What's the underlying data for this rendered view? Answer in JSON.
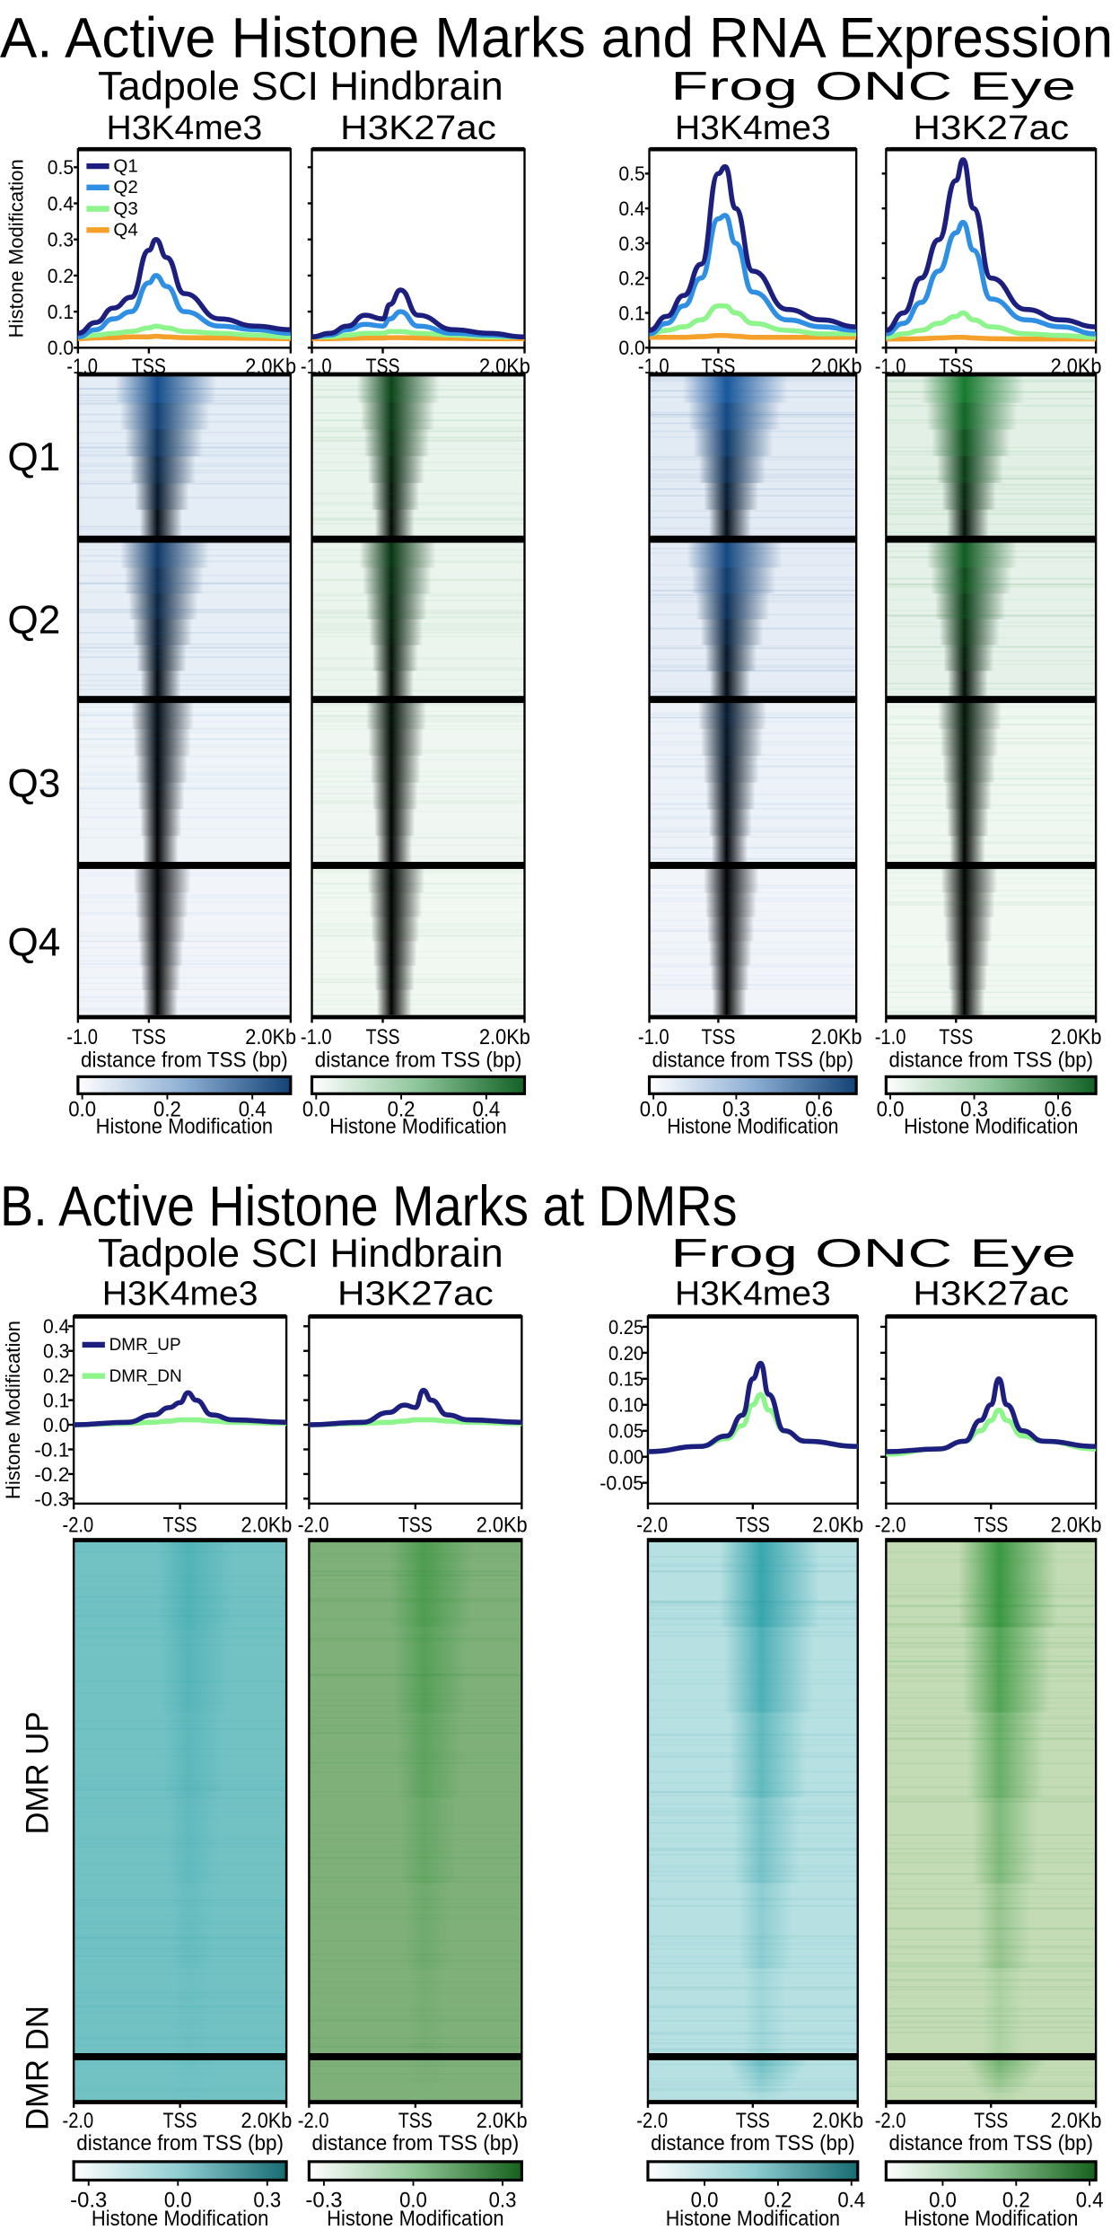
{
  "chart_data": [
    {
      "section": "A",
      "title": "A. Active Histone Marks and RNA Expression",
      "type": "line",
      "groups": [
        {
          "title": "Tadpole SCI Hindbrain",
          "panels": [
            {
              "mark": "H3K4me3",
              "heat_color": "#1b5ea8",
              "ylim": [
                0,
                0.55
              ],
              "yticks": [
                "0.0",
                "0.1",
                "0.2",
                "0.3",
                "0.4",
                "0.5"
              ],
              "cbar_ticks": [
                "0.0",
                "0.2",
                "0.4"
              ],
              "series": [
                {
                  "name": "Q1",
                  "values": [
                    0.04,
                    0.07,
                    0.11,
                    0.14,
                    0.27,
                    0.3,
                    0.25,
                    0.15,
                    0.08,
                    0.06,
                    0.05
                  ]
                },
                {
                  "name": "Q2",
                  "values": [
                    0.03,
                    0.05,
                    0.08,
                    0.1,
                    0.18,
                    0.2,
                    0.17,
                    0.1,
                    0.06,
                    0.05,
                    0.04
                  ]
                },
                {
                  "name": "Q3",
                  "values": [
                    0.03,
                    0.035,
                    0.04,
                    0.045,
                    0.055,
                    0.06,
                    0.055,
                    0.045,
                    0.04,
                    0.035,
                    0.03
                  ]
                },
                {
                  "name": "Q4",
                  "values": [
                    0.025,
                    0.027,
                    0.028,
                    0.03,
                    0.03,
                    0.032,
                    0.03,
                    0.028,
                    0.027,
                    0.026,
                    0.025
                  ]
                }
              ],
              "heat_intensity": [
                0.75,
                0.55,
                0.12,
                0.03
              ]
            },
            {
              "mark": "H3K27ac",
              "heat_color": "#1a8a35",
              "ylim": [
                0,
                0.55
              ],
              "yticks": [],
              "cbar_ticks": [
                "0.0",
                "0.2",
                "0.4"
              ],
              "series": [
                {
                  "name": "Q1",
                  "values": [
                    0.03,
                    0.04,
                    0.06,
                    0.09,
                    0.08,
                    0.12,
                    0.16,
                    0.09,
                    0.05,
                    0.04,
                    0.03
                  ]
                },
                {
                  "name": "Q2",
                  "values": [
                    0.03,
                    0.035,
                    0.05,
                    0.065,
                    0.06,
                    0.08,
                    0.1,
                    0.06,
                    0.04,
                    0.035,
                    0.03
                  ]
                },
                {
                  "name": "Q3",
                  "values": [
                    0.03,
                    0.03,
                    0.035,
                    0.04,
                    0.04,
                    0.045,
                    0.045,
                    0.04,
                    0.035,
                    0.03,
                    0.03
                  ]
                },
                {
                  "name": "Q4",
                  "values": [
                    0.025,
                    0.025,
                    0.026,
                    0.027,
                    0.027,
                    0.028,
                    0.028,
                    0.027,
                    0.026,
                    0.025,
                    0.025
                  ]
                }
              ],
              "heat_intensity": [
                0.45,
                0.35,
                0.08,
                0.03
              ]
            }
          ]
        },
        {
          "title": "Frog ONC Eye",
          "panels": [
            {
              "mark": "H3K4me3",
              "heat_color": "#1b5ea8",
              "ylim": [
                0,
                0.57
              ],
              "yticks": [
                "0.0",
                "0.1",
                "0.2",
                "0.3",
                "0.4",
                "0.5"
              ],
              "cbar_ticks": [
                "0.0",
                "0.3",
                "0.6"
              ],
              "series": [
                {
                  "name": "Q1",
                  "values": [
                    0.05,
                    0.09,
                    0.15,
                    0.24,
                    0.5,
                    0.52,
                    0.4,
                    0.22,
                    0.11,
                    0.08,
                    0.06
                  ]
                },
                {
                  "name": "Q2",
                  "values": [
                    0.04,
                    0.07,
                    0.12,
                    0.2,
                    0.37,
                    0.38,
                    0.3,
                    0.16,
                    0.08,
                    0.06,
                    0.05
                  ]
                },
                {
                  "name": "Q3",
                  "values": [
                    0.04,
                    0.05,
                    0.06,
                    0.08,
                    0.12,
                    0.12,
                    0.1,
                    0.07,
                    0.05,
                    0.04,
                    0.04
                  ]
                },
                {
                  "name": "Q4",
                  "values": [
                    0.03,
                    0.03,
                    0.03,
                    0.032,
                    0.035,
                    0.035,
                    0.033,
                    0.03,
                    0.03,
                    0.03,
                    0.03
                  ]
                }
              ],
              "heat_intensity": [
                0.85,
                0.7,
                0.25,
                0.03
              ]
            },
            {
              "mark": "H3K27ac",
              "heat_color": "#1a8a35",
              "ylim": [
                0,
                0.57
              ],
              "yticks": [],
              "cbar_ticks": [
                "0.0",
                "0.3",
                "0.6"
              ],
              "series": [
                {
                  "name": "Q1",
                  "values": [
                    0.05,
                    0.1,
                    0.2,
                    0.31,
                    0.48,
                    0.54,
                    0.4,
                    0.2,
                    0.11,
                    0.08,
                    0.06
                  ]
                },
                {
                  "name": "Q2",
                  "values": [
                    0.04,
                    0.07,
                    0.13,
                    0.22,
                    0.33,
                    0.36,
                    0.28,
                    0.14,
                    0.08,
                    0.06,
                    0.04
                  ]
                },
                {
                  "name": "Q3",
                  "values": [
                    0.03,
                    0.04,
                    0.05,
                    0.07,
                    0.09,
                    0.1,
                    0.08,
                    0.06,
                    0.04,
                    0.035,
                    0.03
                  ]
                },
                {
                  "name": "Q4",
                  "values": [
                    0.025,
                    0.025,
                    0.026,
                    0.028,
                    0.03,
                    0.03,
                    0.028,
                    0.026,
                    0.025,
                    0.025,
                    0.025
                  ]
                }
              ],
              "heat_intensity": [
                0.8,
                0.6,
                0.15,
                0.03
              ]
            }
          ]
        }
      ],
      "x": [
        -1000,
        -750,
        -500,
        -250,
        0,
        100,
        250,
        500,
        1000,
        1500,
        2000
      ],
      "xlim": [
        -1000,
        2000
      ],
      "xtick_labels": [
        "-1.0",
        "TSS",
        "2.0Kb"
      ],
      "xlabel": "distance from TSS (bp)",
      "ylabel": "Histone Modification",
      "cbar_label": "Histone Modification",
      "heat_groups": [
        "Q1",
        "Q2",
        "Q3",
        "Q4"
      ],
      "series_colors": {
        "Q1": "#1d1f7e",
        "Q2": "#2e8fe3",
        "Q3": "#8ef48c",
        "Q4": "#f6a02c"
      },
      "legend": "top-left"
    },
    {
      "section": "B",
      "title": "B. Active Histone Marks at DMRs",
      "type": "line",
      "groups": [
        {
          "title": "Tadpole SCI Hindbrain",
          "panels": [
            {
              "mark": "H3K4me3",
              "heat_color": "#1f9aa3",
              "heat_bg": "#72c2c4",
              "ylim": [
                -0.32,
                0.44
              ],
              "yticks": [
                "-0.3",
                "-0.2",
                "-0.1",
                "0.0",
                "0.1",
                "0.2",
                "0.3",
                "0.4"
              ],
              "cbar_ticks": [
                "-0.3",
                "0.0",
                "0.3"
              ],
              "series": [
                {
                  "name": "DMR_UP",
                  "values": [
                    0.0,
                    0.01,
                    0.04,
                    0.07,
                    0.09,
                    0.13,
                    0.1,
                    0.04,
                    0.02,
                    0.01
                  ]
                },
                {
                  "name": "DMR_DN",
                  "values": [
                    0.0,
                    0.005,
                    0.01,
                    0.015,
                    0.02,
                    0.02,
                    0.02,
                    0.015,
                    0.01,
                    0.005
                  ]
                }
              ],
              "heat_intensity": [
                0.35,
                0.05
              ]
            },
            {
              "mark": "H3K27ac",
              "heat_color": "#1f8a2a",
              "heat_bg": "#7fb07a",
              "ylim": [
                -0.32,
                0.44
              ],
              "yticks": [],
              "cbar_ticks": [
                "-0.3",
                "0.0",
                "0.3"
              ],
              "series": [
                {
                  "name": "DMR_UP",
                  "values": [
                    0.0,
                    0.01,
                    0.05,
                    0.08,
                    0.07,
                    0.14,
                    0.1,
                    0.04,
                    0.02,
                    0.01
                  ]
                },
                {
                  "name": "DMR_DN",
                  "values": [
                    0.0,
                    0.005,
                    0.01,
                    0.015,
                    0.02,
                    0.02,
                    0.02,
                    0.015,
                    0.01,
                    0.005
                  ]
                }
              ],
              "heat_intensity": [
                0.45,
                0.05
              ]
            }
          ]
        },
        {
          "title": "Frog ONC Eye",
          "panels": [
            {
              "mark": "H3K4me3",
              "heat_color": "#1f9aa3",
              "heat_bg": "#b6e0e2",
              "ylim": [
                -0.09,
                0.27
              ],
              "yticks": [
                "-0.05",
                "0.00",
                "0.05",
                "0.10",
                "0.15",
                "0.20",
                "0.25"
              ],
              "cbar_ticks": [
                "0.0",
                "0.2",
                "0.4"
              ],
              "series": [
                {
                  "name": "DMR_UP",
                  "values": [
                    0.01,
                    0.02,
                    0.04,
                    0.08,
                    0.15,
                    0.18,
                    0.12,
                    0.05,
                    0.03,
                    0.02
                  ]
                },
                {
                  "name": "DMR_DN",
                  "values": [
                    0.01,
                    0.02,
                    0.035,
                    0.06,
                    0.1,
                    0.12,
                    0.09,
                    0.05,
                    0.03,
                    0.02
                  ]
                }
              ],
              "heat_intensity": [
                0.75,
                0.45
              ]
            },
            {
              "mark": "H3K27ac",
              "heat_color": "#1f8a2a",
              "heat_bg": "#c4dcb6",
              "ylim": [
                -0.09,
                0.27
              ],
              "yticks": [],
              "cbar_ticks": [
                "0.0",
                "0.2",
                "0.4"
              ],
              "series": [
                {
                  "name": "DMR_UP",
                  "values": [
                    0.01,
                    0.015,
                    0.03,
                    0.07,
                    0.1,
                    0.15,
                    0.1,
                    0.05,
                    0.03,
                    0.02
                  ]
                },
                {
                  "name": "DMR_DN",
                  "values": [
                    0.005,
                    0.015,
                    0.03,
                    0.05,
                    0.07,
                    0.09,
                    0.07,
                    0.04,
                    0.03,
                    0.015
                  ]
                }
              ],
              "heat_intensity": [
                0.75,
                0.45
              ]
            }
          ]
        }
      ],
      "x": [
        -2000,
        -1000,
        -500,
        -200,
        0,
        150,
        300,
        600,
        1000,
        2000
      ],
      "xlim": [
        -2000,
        2000
      ],
      "xtick_labels": [
        "-2.0",
        "TSS",
        "2.0Kb"
      ],
      "xlabel": "distance from TSS (bp)",
      "ylabel": "Histone Modification",
      "cbar_label": "Histone Modification",
      "heat_groups": [
        "DMR UP",
        "DMR DN"
      ],
      "series_colors": {
        "DMR_UP": "#1d1f7e",
        "DMR_DN": "#8ef48c"
      },
      "legend": "top-left"
    }
  ]
}
